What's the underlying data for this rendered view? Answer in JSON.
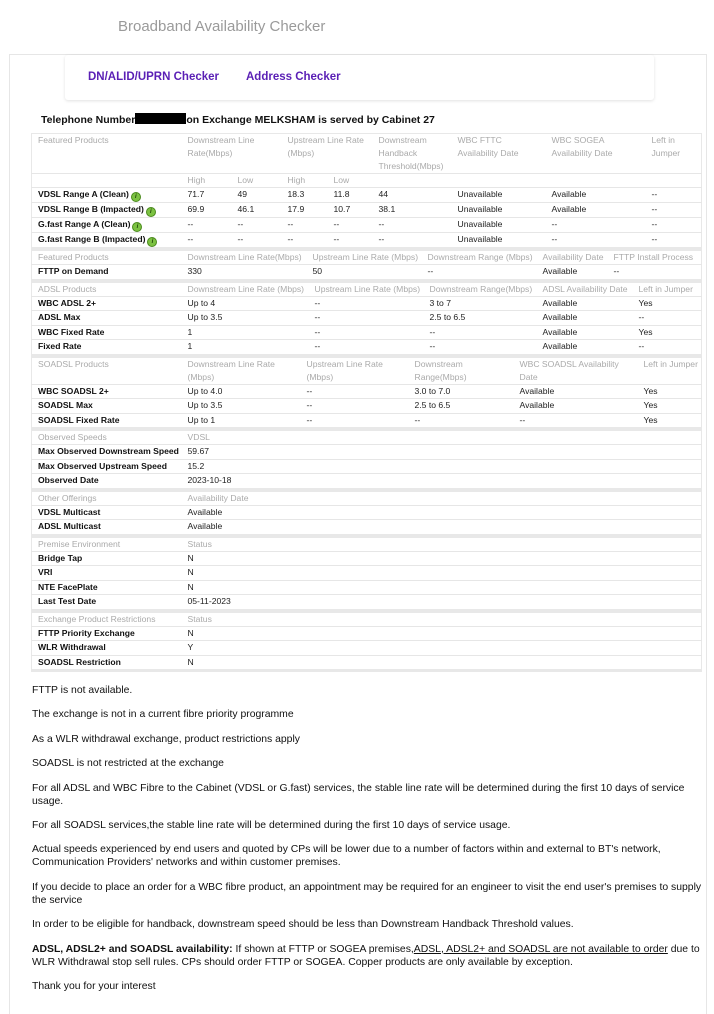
{
  "app_title": "Broadband Availability Checker",
  "nav": {
    "dn_checker": "DN/ALID/UPRN Checker",
    "address_checker": "Address Checker",
    "link_color": "#5a1fb5"
  },
  "headline": {
    "prefix": "Telephone Number",
    "suffix": "on Exchange MELKSHAM is served by Cabinet 27"
  },
  "tables": [
    {
      "headers": [
        "Featured Products",
        "Downstream Line Rate(Mbps)",
        "",
        "Upstream Line Rate (Mbps)",
        "",
        "Downstream Handback Threshold(Mbps)",
        "WBC FTTC Availability Date",
        "WBC SOGEA Availability Date",
        "Left in Jumper"
      ],
      "header_spans": [
        1,
        2,
        0,
        2,
        0,
        1,
        1,
        1,
        1
      ],
      "subheaders": [
        "",
        "High",
        "Low",
        "High",
        "Low",
        "",
        "",
        "",
        ""
      ],
      "info_icon": true,
      "rows": [
        [
          "VDSL Range A (Clean)",
          "71.7",
          "49",
          "18.3",
          "11.8",
          "44",
          "Unavailable",
          "Available",
          "--"
        ],
        [
          "VDSL Range B (Impacted)",
          "69.9",
          "46.1",
          "17.9",
          "10.7",
          "38.1",
          "Unavailable",
          "Available",
          "--"
        ],
        [
          "G.fast Range A (Clean)",
          "--",
          "--",
          "--",
          "--",
          "--",
          "Unavailable",
          "--",
          "--"
        ],
        [
          "G.fast Range B (Impacted)",
          "--",
          "--",
          "--",
          "--",
          "--",
          "Unavailable",
          "--",
          "--"
        ]
      ]
    },
    {
      "headers": [
        "Featured Products",
        "Downstream Line Rate(Mbps)",
        "Upstream Line Rate (Mbps)",
        "Downstream Range (Mbps)",
        "Availability Date",
        "FTTP Install Process"
      ],
      "rows": [
        [
          "FTTP on Demand",
          "330",
          "50",
          "--",
          "Available",
          "--"
        ]
      ]
    },
    {
      "headers": [
        "ADSL Products",
        "Downstream Line Rate (Mbps)",
        "Upstream Line Rate (Mbps)",
        "Downstream Range(Mbps)",
        "ADSL Availability Date",
        "Left in Jumper"
      ],
      "rows": [
        [
          "WBC ADSL 2+",
          "Up to 4",
          "--",
          "3 to 7",
          "Available",
          "Yes"
        ],
        [
          "ADSL Max",
          "Up to 3.5",
          "--",
          "2.5 to 6.5",
          "Available",
          "--"
        ],
        [
          "WBC Fixed Rate",
          "1",
          "--",
          "--",
          "Available",
          "Yes"
        ],
        [
          "Fixed Rate",
          "1",
          "--",
          "--",
          "Available",
          "--"
        ]
      ]
    },
    {
      "headers": [
        "SOADSL Products",
        "Downstream Line Rate (Mbps)",
        "Upstream Line Rate (Mbps)",
        "Downstream Range(Mbps)",
        "WBC SOADSL Availability Date",
        "Left in Jumper"
      ],
      "rows": [
        [
          "WBC SOADSL 2+",
          "Up to 4.0",
          "--",
          "3.0 to 7.0",
          "Available",
          "Yes"
        ],
        [
          "SOADSL Max",
          "Up to 3.5",
          "--",
          "2.5 to 6.5",
          "Available",
          "Yes"
        ],
        [
          "SOADSL Fixed Rate",
          "Up to 1",
          "--",
          "--",
          "--",
          "Yes"
        ]
      ]
    },
    {
      "headers": [
        "Observed Speeds",
        "VDSL"
      ],
      "rows": [
        [
          "Max Observed Downstream Speed",
          "59.67"
        ],
        [
          "Max Observed Upstream Speed",
          "15.2"
        ],
        [
          "Observed Date",
          "2023-10-18"
        ]
      ]
    },
    {
      "headers": [
        "Other Offerings",
        "Availability Date"
      ],
      "rows": [
        [
          "VDSL Multicast",
          "Available"
        ],
        [
          "ADSL Multicast",
          "Available"
        ]
      ]
    },
    {
      "headers": [
        "Premise Environment",
        "Status"
      ],
      "rows": [
        [
          "Bridge Tap",
          "N"
        ],
        [
          "VRI",
          "N"
        ],
        [
          "NTE FacePlate",
          "N"
        ],
        [
          "Last Test Date",
          "05-11-2023"
        ]
      ]
    },
    {
      "headers": [
        "Exchange Product Restrictions",
        "Status"
      ],
      "rows": [
        [
          "FTTP Priority Exchange",
          "N"
        ],
        [
          "WLR Withdrawal",
          "Y"
        ],
        [
          "SOADSL Restriction",
          "N"
        ]
      ]
    }
  ],
  "notes": [
    "FTTP is not available.",
    "The exchange is not in a current fibre priority programme",
    "As a WLR withdrawal exchange, product restrictions apply",
    "SOADSL is not restricted at the exchange",
    "For all ADSL and WBC Fibre to the Cabinet (VDSL or G.fast) services, the stable line rate will be determined during the first 10 days of service usage.",
    "For all SOADSL services,the stable line rate will be determined during the first 10 days of service usage.",
    "Actual speeds experienced by end users and quoted by CPs will be lower due to a number of factors within and external to BT's network, Communication Providers' networks and within customer premises.",
    "If you decide to place an order for a WBC fibre product, an appointment may be required for an engineer to visit the end user's premises to supply the service",
    "In order to be eligible for handback, downstream speed should be less than Downstream Handback Threshold values."
  ],
  "copper_note": {
    "bold": "ADSL, ADSL2+ and SOADSL availability:",
    "pre": " If shown at FTTP or SOGEA premises,",
    "underlined": "ADSL, ADSL2+ and SOADSL are not available to order",
    "post": " due to WLR Withdrawal stop sell rules. CPs should order FTTP or SOGEA. Copper products are only available by exception."
  },
  "thanks": "Thank you for your interest"
}
